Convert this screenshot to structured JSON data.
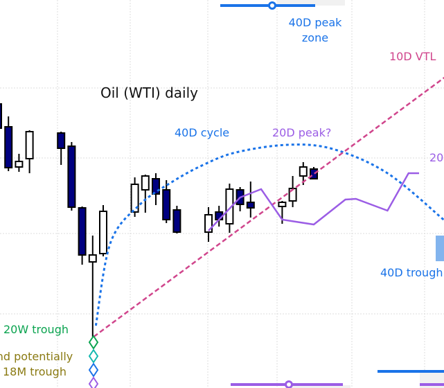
{
  "chart_data": {
    "type": "candlestick",
    "title": "Oil (WTI) daily",
    "xlabel": "",
    "ylabel": "",
    "grid": true,
    "colors": {
      "down_body": "#000080",
      "up_body": "#ffffff",
      "cycle_40d": "#1a73e8",
      "vtl_10d": "#d0458c",
      "projection_20d": "#9b5de5"
    },
    "candles": [
      {
        "bar": 0,
        "open": 41.0,
        "high": 42.0,
        "low": 37.0,
        "close": 37.5
      },
      {
        "bar": 1,
        "open": 37.7,
        "high": 39.2,
        "low": 31.3,
        "close": 31.8
      },
      {
        "bar": 2,
        "open": 31.9,
        "high": 33.8,
        "low": 31.2,
        "close": 32.7
      },
      {
        "bar": 3,
        "open": 33.1,
        "high": 37.2,
        "low": 31.0,
        "close": 37.0
      },
      {
        "bar": 6,
        "open": 36.8,
        "high": 37.0,
        "low": 32.2,
        "close": 34.6
      },
      {
        "bar": 7,
        "open": 34.9,
        "high": 35.5,
        "low": 25.6,
        "close": 26.1
      },
      {
        "bar": 8,
        "open": 26.0,
        "high": 26.2,
        "low": 17.8,
        "close": 19.2
      },
      {
        "bar": 9,
        "open": 18.2,
        "high": 22.0,
        "low": 7.4,
        "close": 19.2
      },
      {
        "bar": 10,
        "open": 19.4,
        "high": 26.4,
        "low": 19.0,
        "close": 25.5
      },
      {
        "bar": 13,
        "open": 25.4,
        "high": 30.4,
        "low": 24.7,
        "close": 29.4
      },
      {
        "bar": 14,
        "open": 28.6,
        "high": 30.8,
        "low": 25.3,
        "close": 30.6
      },
      {
        "bar": 15,
        "open": 30.2,
        "high": 31.0,
        "low": 26.4,
        "close": 28.0
      },
      {
        "bar": 16,
        "open": 28.6,
        "high": 30.0,
        "low": 23.8,
        "close": 24.3
      },
      {
        "bar": 17,
        "open": 25.7,
        "high": 26.3,
        "low": 22.3,
        "close": 22.5
      },
      {
        "bar": 20,
        "open": 22.5,
        "high": 26.1,
        "low": 21.1,
        "close": 25.0
      },
      {
        "bar": 21,
        "open": 25.4,
        "high": 26.3,
        "low": 23.3,
        "close": 24.3
      },
      {
        "bar": 22,
        "open": 23.7,
        "high": 29.5,
        "low": 22.4,
        "close": 28.7
      },
      {
        "bar": 23,
        "open": 28.6,
        "high": 29.0,
        "low": 25.5,
        "close": 26.5
      },
      {
        "bar": 24,
        "open": 26.8,
        "high": 29.8,
        "low": 24.6,
        "close": 26.0
      },
      {
        "bar": 27,
        "open": 26.2,
        "high": 27.0,
        "low": 23.7,
        "close": 26.8
      },
      {
        "bar": 28,
        "open": 27.0,
        "high": 30.6,
        "low": 26.1,
        "close": 28.8
      },
      {
        "bar": 29,
        "open": 30.6,
        "high": 32.6,
        "low": 29.3,
        "close": 31.9
      },
      {
        "bar": 30,
        "open": 31.6,
        "high": 31.9,
        "low": 30.2,
        "close": 30.2
      }
    ],
    "projection_20d": [
      [
        20,
        22.7
      ],
      [
        23,
        27.5
      ],
      [
        25,
        28.7
      ],
      [
        27,
        24.3
      ],
      [
        30,
        23.6
      ],
      [
        33,
        27.2
      ],
      [
        34,
        27.3
      ],
      [
        37,
        25.6
      ],
      [
        39,
        31.0
      ],
      [
        40,
        31.0
      ]
    ],
    "cycle_40d_arc": [
      [
        9.3,
        9.0
      ],
      [
        10.7,
        21.0
      ],
      [
        13.5,
        26.5
      ],
      [
        16.6,
        29.8
      ],
      [
        19.5,
        32.2
      ],
      [
        22.6,
        34.0
      ],
      [
        27.5,
        35.1
      ],
      [
        31.8,
        34.5
      ],
      [
        37,
        31
      ],
      [
        42.4,
        24.2
      ]
    ],
    "vtl_10d": [
      [
        9.1,
        7.4
      ],
      [
        42.4,
        44.8
      ]
    ],
    "trough_markers": [
      {
        "label": "20W trough",
        "color": "#0aa34f"
      },
      {
        "label": "",
        "color": "#14b8b0"
      },
      {
        "label": "",
        "color": "#1a73e8"
      },
      {
        "label": "",
        "color": "#9b5de5"
      }
    ],
    "annotations": {
      "cycle_40d": "40D cycle",
      "peak_20d": "20D peak?",
      "peak_20d_right": "20",
      "trough_40d": "40D trough",
      "vtl": "10D VTL",
      "peak_zone_line1": "40D peak",
      "peak_zone_line2": "zone",
      "trough_20w": "20W trough",
      "trough_18m_line1": "nd potentially",
      "trough_18m_line2": "18M trough"
    }
  }
}
